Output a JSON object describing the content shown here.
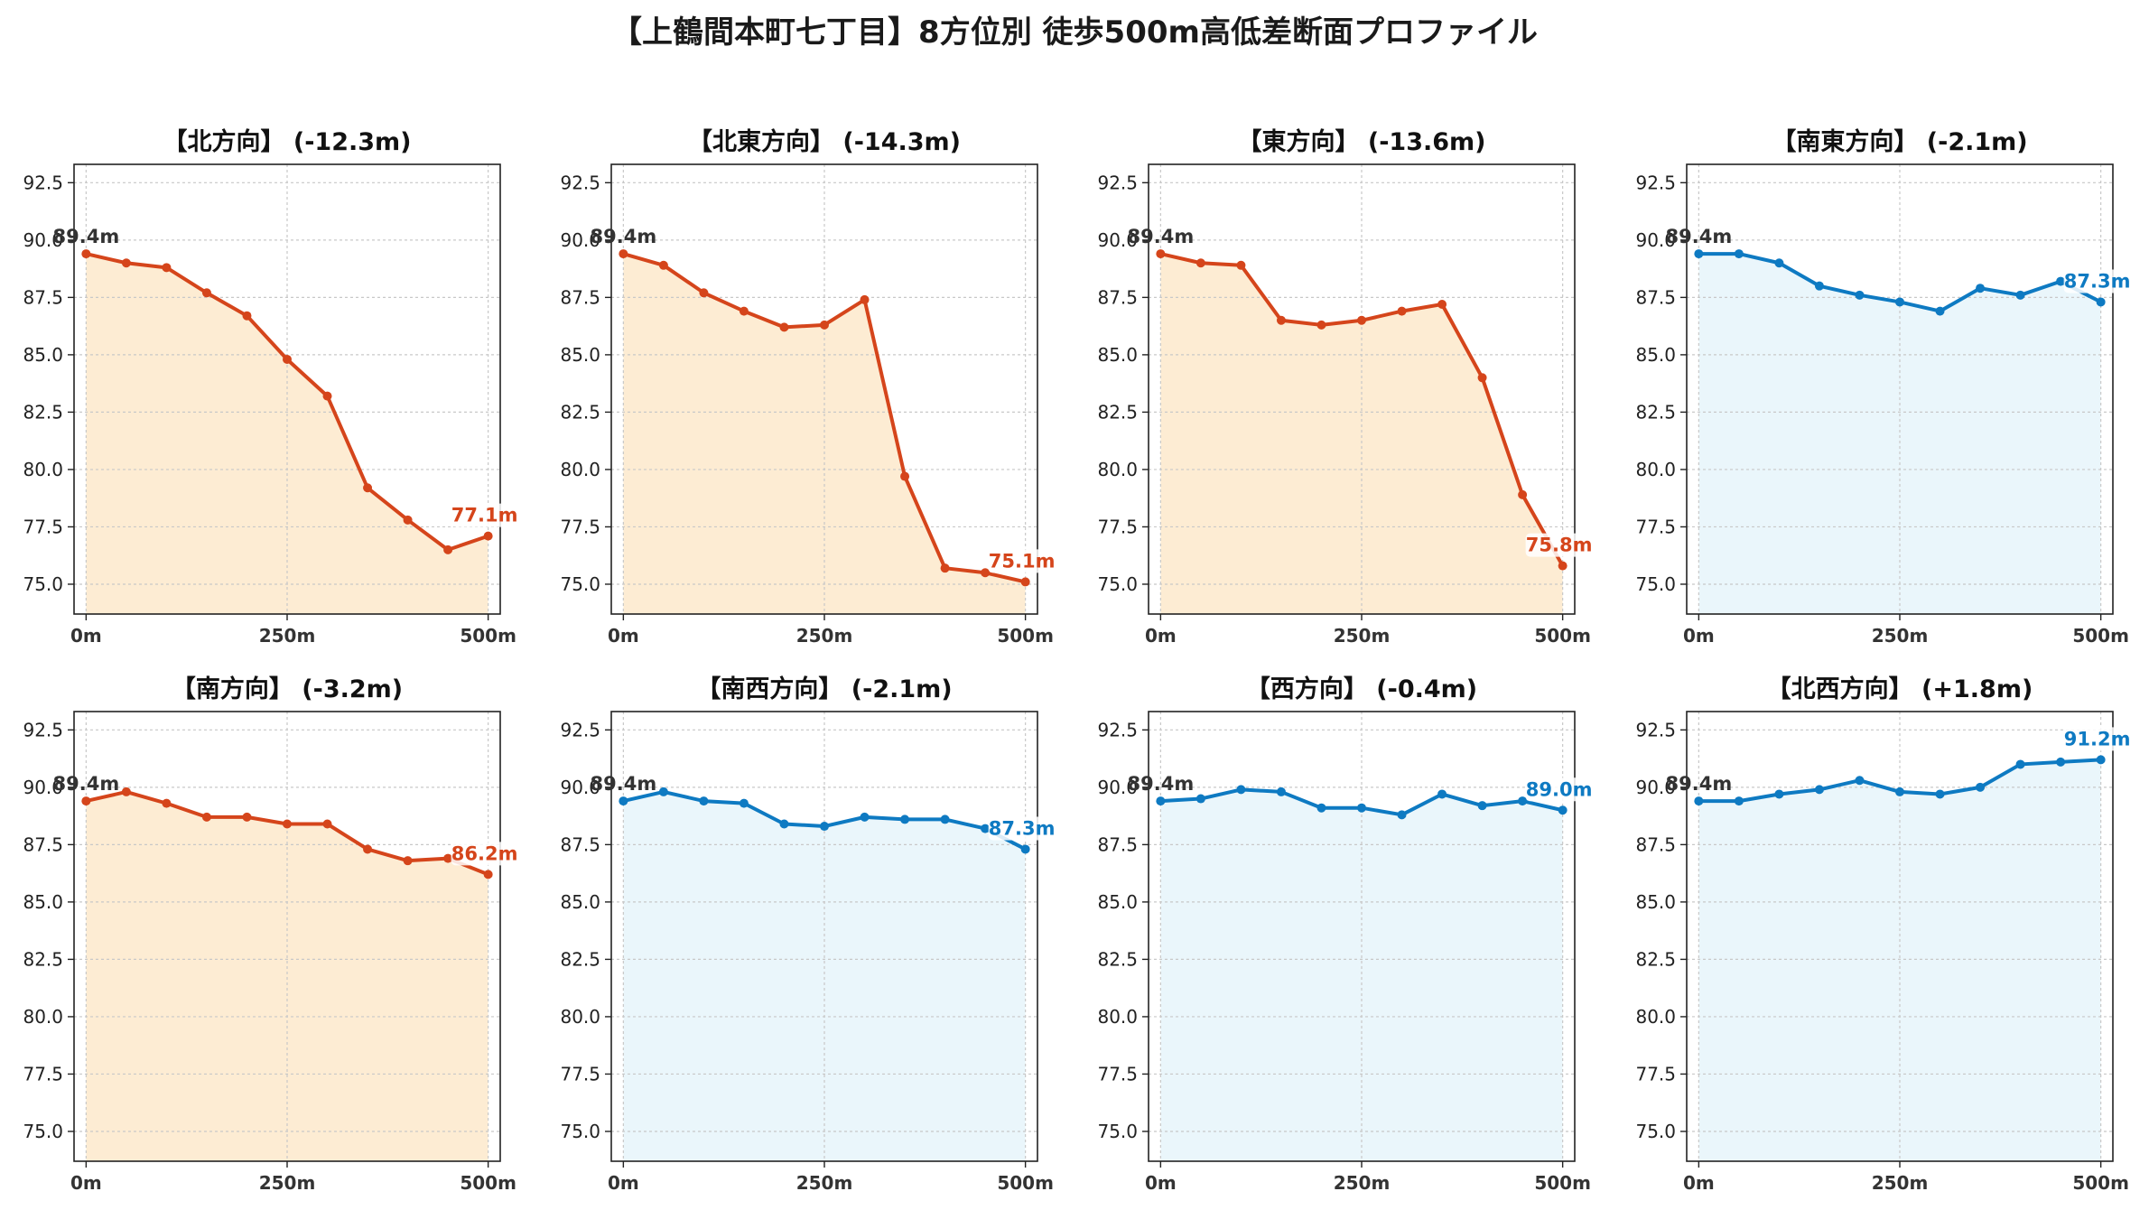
{
  "title": "【上鶴間本町七丁目】8方位別 徒歩500m高低差断面プロファイル",
  "colors": {
    "down_line": "#d5451b",
    "down_fill": "#fdecd3",
    "up_line": "#0e7ac2",
    "up_fill": "#eaf6fb",
    "grid": "#c8c8c8",
    "axis": "#222222"
  },
  "chart_data": [
    {
      "type": "area",
      "title": "【北方向】 (-12.3m)",
      "trend": "down",
      "x": [
        0,
        50,
        100,
        150,
        200,
        250,
        300,
        350,
        400,
        450,
        500
      ],
      "y": [
        89.4,
        89.0,
        88.8,
        87.7,
        86.7,
        84.8,
        83.2,
        79.2,
        77.8,
        76.5,
        77.1
      ],
      "start_label": "89.4m",
      "end_label": "77.1m",
      "xticks": [
        "0m",
        "250m",
        "500m"
      ],
      "ylim": [
        73.7,
        93.3
      ],
      "yticks": [
        "75.0",
        "77.5",
        "80.0",
        "82.5",
        "85.0",
        "87.5",
        "90.0",
        "92.5"
      ]
    },
    {
      "type": "area",
      "title": "【北東方向】 (-14.3m)",
      "trend": "down",
      "x": [
        0,
        50,
        100,
        150,
        200,
        250,
        300,
        350,
        400,
        450,
        500
      ],
      "y": [
        89.4,
        88.9,
        87.7,
        86.9,
        86.2,
        86.3,
        87.4,
        79.7,
        75.7,
        75.5,
        75.1
      ],
      "start_label": "89.4m",
      "end_label": "75.1m",
      "xticks": [
        "0m",
        "250m",
        "500m"
      ],
      "ylim": [
        73.7,
        93.3
      ],
      "yticks": [
        "75.0",
        "77.5",
        "80.0",
        "82.5",
        "85.0",
        "87.5",
        "90.0",
        "92.5"
      ]
    },
    {
      "type": "area",
      "title": "【東方向】 (-13.6m)",
      "trend": "down",
      "x": [
        0,
        50,
        100,
        150,
        200,
        250,
        300,
        350,
        400,
        450,
        500
      ],
      "y": [
        89.4,
        89.0,
        88.9,
        86.5,
        86.3,
        86.5,
        86.9,
        87.2,
        84.0,
        78.9,
        75.8
      ],
      "start_label": "89.4m",
      "end_label": "75.8m",
      "xticks": [
        "0m",
        "250m",
        "500m"
      ],
      "ylim": [
        73.7,
        93.3
      ],
      "yticks": [
        "75.0",
        "77.5",
        "80.0",
        "82.5",
        "85.0",
        "87.5",
        "90.0",
        "92.5"
      ]
    },
    {
      "type": "area",
      "title": "【南東方向】 (-2.1m)",
      "trend": "up",
      "x": [
        0,
        50,
        100,
        150,
        200,
        250,
        300,
        350,
        400,
        450,
        500
      ],
      "y": [
        89.4,
        89.4,
        89.0,
        88.0,
        87.6,
        87.3,
        86.9,
        87.9,
        87.6,
        88.2,
        87.3
      ],
      "start_label": "89.4m",
      "end_label": "87.3m",
      "xticks": [
        "0m",
        "250m",
        "500m"
      ],
      "ylim": [
        73.7,
        93.3
      ],
      "yticks": [
        "75.0",
        "77.5",
        "80.0",
        "82.5",
        "85.0",
        "87.5",
        "90.0",
        "92.5"
      ]
    },
    {
      "type": "area",
      "title": "【南方向】 (-3.2m)",
      "trend": "down",
      "x": [
        0,
        50,
        100,
        150,
        200,
        250,
        300,
        350,
        400,
        450,
        500
      ],
      "y": [
        89.4,
        89.8,
        89.3,
        88.7,
        88.7,
        88.4,
        88.4,
        87.3,
        86.8,
        86.9,
        86.2
      ],
      "start_label": "89.4m",
      "end_label": "86.2m",
      "xticks": [
        "0m",
        "250m",
        "500m"
      ],
      "ylim": [
        73.7,
        93.3
      ],
      "yticks": [
        "75.0",
        "77.5",
        "80.0",
        "82.5",
        "85.0",
        "87.5",
        "90.0",
        "92.5"
      ]
    },
    {
      "type": "area",
      "title": "【南西方向】 (-2.1m)",
      "trend": "up",
      "x": [
        0,
        50,
        100,
        150,
        200,
        250,
        300,
        350,
        400,
        450,
        500
      ],
      "y": [
        89.4,
        89.8,
        89.4,
        89.3,
        88.4,
        88.3,
        88.7,
        88.6,
        88.6,
        88.2,
        87.3
      ],
      "start_label": "89.4m",
      "end_label": "87.3m",
      "xticks": [
        "0m",
        "250m",
        "500m"
      ],
      "ylim": [
        73.7,
        93.3
      ],
      "yticks": [
        "75.0",
        "77.5",
        "80.0",
        "82.5",
        "85.0",
        "87.5",
        "90.0",
        "92.5"
      ]
    },
    {
      "type": "area",
      "title": "【西方向】 (-0.4m)",
      "trend": "up",
      "x": [
        0,
        50,
        100,
        150,
        200,
        250,
        300,
        350,
        400,
        450,
        500
      ],
      "y": [
        89.4,
        89.5,
        89.9,
        89.8,
        89.1,
        89.1,
        88.8,
        89.7,
        89.2,
        89.4,
        89.0
      ],
      "start_label": "89.4m",
      "end_label": "89.0m",
      "xticks": [
        "0m",
        "250m",
        "500m"
      ],
      "ylim": [
        73.7,
        93.3
      ],
      "yticks": [
        "75.0",
        "77.5",
        "80.0",
        "82.5",
        "85.0",
        "87.5",
        "90.0",
        "92.5"
      ]
    },
    {
      "type": "area",
      "title": "【北西方向】 (+1.8m)",
      "trend": "up",
      "x": [
        0,
        50,
        100,
        150,
        200,
        250,
        300,
        350,
        400,
        450,
        500
      ],
      "y": [
        89.4,
        89.4,
        89.7,
        89.9,
        90.3,
        89.8,
        89.7,
        90.0,
        91.0,
        91.1,
        91.2
      ],
      "start_label": "89.4m",
      "end_label": "91.2m",
      "xticks": [
        "0m",
        "250m",
        "500m"
      ],
      "ylim": [
        73.7,
        93.3
      ],
      "yticks": [
        "75.0",
        "77.5",
        "80.0",
        "82.5",
        "85.0",
        "87.5",
        "90.0",
        "92.5"
      ]
    }
  ]
}
